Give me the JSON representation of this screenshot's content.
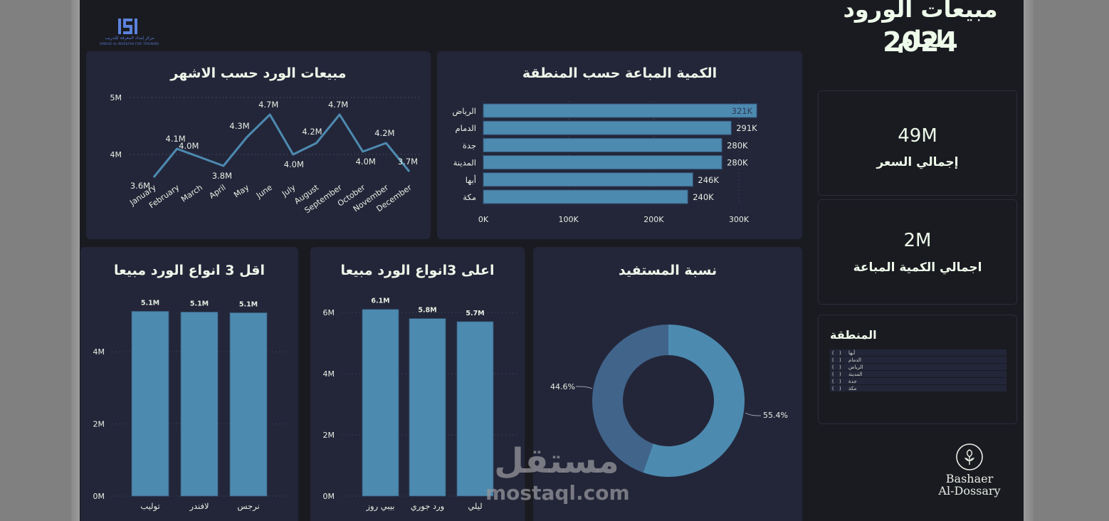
{
  "header": {
    "title_line1": "مبيعات الورود لعام",
    "title_line2": "2024",
    "logo": {
      "mark": "ISI",
      "arabic_text": "مركز إمداد المعرفة للتدريب",
      "english_text": "EMDAD AL-MAREFAH FOR TRAINING"
    }
  },
  "kpis": [
    {
      "value": "49M",
      "label": "إجمالي السعر"
    },
    {
      "value": "2M",
      "label": "اجمالي الكمية المباعة"
    }
  ],
  "slicer": {
    "title": "المنطقة",
    "items": [
      {
        "label": "أبها",
        "checked": false
      },
      {
        "label": "الدمام",
        "checked": false
      },
      {
        "label": "الرياض",
        "checked": false
      },
      {
        "label": "المدينة",
        "checked": false
      },
      {
        "label": "جدة",
        "checked": false
      },
      {
        "label": "مكة",
        "checked": false
      }
    ]
  },
  "brand": {
    "icon": "flower-circle-icon",
    "line1": "Bashaer",
    "line2": "Al-Dossary"
  },
  "watermark": {
    "arabic": "مستقل",
    "english": "mostaql.com"
  },
  "colors": {
    "background": "#1a1b21",
    "panel": "#232639",
    "bar": "#4d8ab0",
    "donut_dark": "#41648b",
    "text": "#eefaea"
  },
  "chart_data": [
    {
      "id": "monthly_sales",
      "type": "line",
      "title": "مبيعات الورد حسب الاشهر",
      "categories": [
        "January",
        "February",
        "March",
        "April",
        "May",
        "June",
        "July",
        "August",
        "September",
        "October",
        "November",
        "December"
      ],
      "values": [
        3.6,
        4.1,
        3.95,
        3.8,
        4.3,
        4.7,
        4.0,
        4.2,
        4.7,
        4.05,
        4.2,
        3.7
      ],
      "labels": [
        "3.6M",
        "4.1M",
        "4.0M",
        "3.8M",
        "4.3M",
        "4.7M",
        "4.0M",
        "4.2M",
        "4.7M",
        "4.0M",
        "4.2M",
        "3.7M"
      ],
      "yticks": [
        "4M",
        "5M"
      ],
      "ylim": [
        3.5,
        5
      ],
      "grid": true,
      "xlabel": "",
      "ylabel": ""
    },
    {
      "id": "qty_by_region",
      "type": "bar",
      "orientation": "horizontal",
      "title": "الكمية المباعة حسب المنطقة",
      "categories": [
        "الرياض",
        "الدمام",
        "جدة",
        "المدينة",
        "أبها",
        "مكة"
      ],
      "values": [
        321,
        291,
        280,
        280,
        246,
        240
      ],
      "labels": [
        "321K",
        "291K",
        "280K",
        "280K",
        "246K",
        "240K"
      ],
      "xticks": [
        "0K",
        "100K",
        "200K",
        "300K"
      ],
      "xlim": [
        0,
        330
      ],
      "unit": "K"
    },
    {
      "id": "bottom3_types",
      "type": "bar",
      "title": "اقل 3 انواع الورد مبيعا",
      "categories": [
        "توليب",
        "لافندر",
        "نرجس"
      ],
      "values": [
        5.12,
        5.1,
        5.08
      ],
      "labels": [
        "5.1M",
        "5.1M",
        "5.1M"
      ],
      "yticks": [
        "0M",
        "2M",
        "4M"
      ],
      "ylim": [
        0,
        6.5
      ]
    },
    {
      "id": "top3_types",
      "type": "bar",
      "title": "اعلى 3انواع الورد مبيعا",
      "categories": [
        "بيبي روز",
        "ورد جوري",
        "ليلي"
      ],
      "values": [
        6.1,
        5.8,
        5.7
      ],
      "labels": [
        "6.1M",
        "5.8M",
        "5.7M"
      ],
      "yticks": [
        "0M",
        "2M",
        "4M",
        "6M"
      ],
      "ylim": [
        0,
        7.2
      ]
    },
    {
      "id": "beneficiary_ratio",
      "type": "pie",
      "donut": true,
      "title": "نسبة المستفيد",
      "values": [
        55.4,
        44.6
      ],
      "labels": [
        "55.4%",
        "44.6%"
      ],
      "colors": [
        "#4d8ab0",
        "#41648b"
      ]
    }
  ]
}
